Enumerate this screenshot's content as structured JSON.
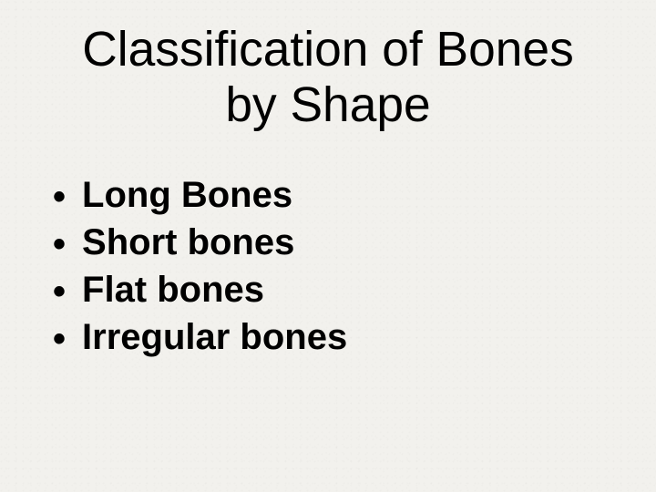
{
  "slide": {
    "background_color": "#f2f1ed",
    "title": {
      "line1": "Classification of Bones",
      "line2": "by Shape",
      "font_family": "Comic Sans MS",
      "font_size_pt": 40,
      "font_weight": "normal",
      "color": "#000000",
      "align": "center"
    },
    "bullets": {
      "items": [
        "Long Bones",
        "Short bones",
        "Flat bones",
        "Irregular bones"
      ],
      "font_family": "Comic Sans MS",
      "font_size_pt": 30,
      "font_weight": "bold",
      "color": "#000000",
      "bullet_char": "•",
      "bullet_color": "#000000"
    }
  }
}
